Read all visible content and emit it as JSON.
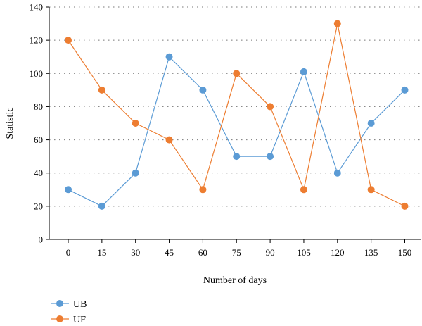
{
  "chart_data": {
    "type": "line",
    "x": [
      0,
      15,
      30,
      45,
      60,
      75,
      90,
      105,
      120,
      135,
      150
    ],
    "xlabel": "Number of days",
    "ylabel": "Statistic",
    "ylim": [
      0,
      140
    ],
    "yticks": [
      0,
      20,
      40,
      60,
      80,
      100,
      120,
      140
    ],
    "grid": "horizontal dotted",
    "legend_position": "bottom-left",
    "series": [
      {
        "name": "UB",
        "color": "#5b9bd5",
        "values": [
          30,
          20,
          40,
          110,
          90,
          50,
          50,
          101,
          40,
          70,
          90
        ]
      },
      {
        "name": "UF",
        "color": "#ed7d31",
        "values": [
          120,
          90,
          70,
          60,
          30,
          100,
          80,
          30,
          130,
          30,
          20
        ]
      }
    ]
  }
}
